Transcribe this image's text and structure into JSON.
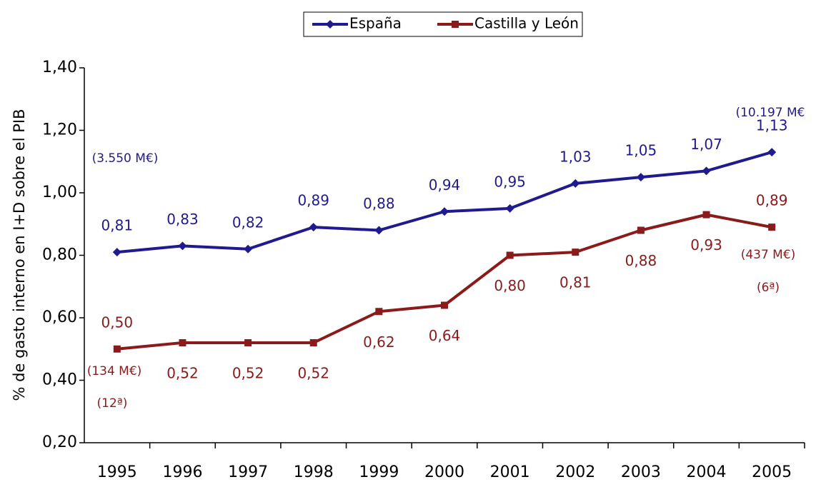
{
  "chart_data": {
    "type": "line",
    "y_axis_label": "% de gasto interno en I+D sobre el  PIB",
    "categories": [
      "1995",
      "1996",
      "1997",
      "1998",
      "1999",
      "2000",
      "2001",
      "2002",
      "2003",
      "2004",
      "2005"
    ],
    "series": [
      {
        "name": "España",
        "color": "#1f1a8f",
        "marker": "diamond",
        "values": [
          0.81,
          0.83,
          0.82,
          0.89,
          0.88,
          0.94,
          0.95,
          1.03,
          1.05,
          1.07,
          1.13
        ],
        "value_labels": [
          "0,81",
          "0,83",
          "0,82",
          "0,89",
          "0,88",
          "0,94",
          "0,95",
          "1,03",
          "1,05",
          "1,07",
          "1,13"
        ]
      },
      {
        "name": "Castilla y León",
        "color": "#8b1a1a",
        "marker": "square",
        "values": [
          0.5,
          0.52,
          0.52,
          0.52,
          0.62,
          0.64,
          0.8,
          0.81,
          0.88,
          0.93,
          0.89
        ],
        "value_labels": [
          "0,50",
          "0,52",
          "0,52",
          "0,52",
          "0,62",
          "0,64",
          "0,80",
          "0,81",
          "0,88",
          "0,93",
          "0,89"
        ]
      }
    ],
    "annotations": [
      {
        "text": "(3.550 M€)",
        "color": "#1f1a8f"
      },
      {
        "text": "(10.197 M€",
        "color": "#1f1a8f"
      },
      {
        "text": "(134 M€)",
        "color": "#8b1a1a"
      },
      {
        "text": "(12ª)",
        "color": "#8b1a1a"
      },
      {
        "text": "(437 M€)",
        "color": "#8b1a1a"
      },
      {
        "text": "(6ª)",
        "color": "#8b1a1a"
      }
    ],
    "ylim": [
      0.2,
      1.4
    ],
    "yticks": [
      {
        "value": 0.2,
        "label": "0,20"
      },
      {
        "value": 0.4,
        "label": "0,40"
      },
      {
        "value": 0.6,
        "label": "0,60"
      },
      {
        "value": 0.8,
        "label": "0,80"
      },
      {
        "value": 1.0,
        "label": "1,00"
      },
      {
        "value": 1.2,
        "label": "1,20"
      },
      {
        "value": 1.4,
        "label": "1,40"
      }
    ],
    "legend": "top",
    "grid": false
  }
}
